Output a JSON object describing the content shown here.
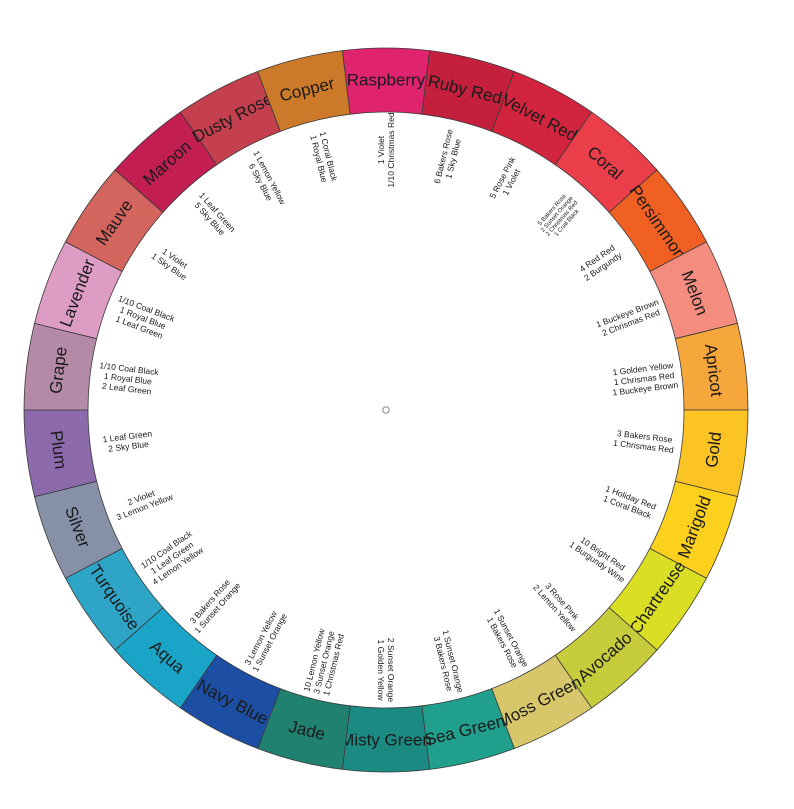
{
  "wheel": {
    "segments": [
      {
        "name": "Raspberry",
        "color": "#e0236f",
        "recipe": [
          "1 Violet",
          "1/10 Christmas Red"
        ]
      },
      {
        "name": "Ruby Red",
        "color": "#c41f3d",
        "recipe": [
          "6 Bakers Rose",
          "1 Sky Blue"
        ]
      },
      {
        "name": "Velvet Red",
        "color": "#d2243e",
        "recipe": [
          "5 Rose Pink",
          "1 Violet"
        ]
      },
      {
        "name": "Coral",
        "color": "#ea3f4a",
        "recipe": [
          "5 Bakers Rose",
          "2 Sunset Orange",
          "2 Christmas Red",
          "1 Coal Black"
        ]
      },
      {
        "name": "Persimmon",
        "color": "#f16023",
        "recipe": [
          "4 Red Red",
          "2 Burgundy"
        ]
      },
      {
        "name": "Melon",
        "color": "#f48c80",
        "recipe": [
          "1 Buckeye Brown",
          "2 Chrismas Red"
        ]
      },
      {
        "name": "Apricot",
        "color": "#f6a73b",
        "recipe": [
          "1 Golden Yellow",
          "1 Chrismas Red",
          "1 Buckeye Brown"
        ]
      },
      {
        "name": "Gold",
        "color": "#fcc324",
        "recipe": [
          "3 Bakers Rose",
          "1 Chrismas Red"
        ]
      },
      {
        "name": "Marigold",
        "color": "#fcd11e",
        "recipe": [
          "1 Holiday Red",
          "1 Coral Black"
        ]
      },
      {
        "name": "Chartreuse",
        "color": "#dade24",
        "recipe": [
          "10 Bright Red",
          "1 Burgundy Wine"
        ]
      },
      {
        "name": "Avocado",
        "color": "#c6cc3c",
        "recipe": [
          "3 Rose Pink",
          "2 Lemon Yellow"
        ]
      },
      {
        "name": "Moss Green",
        "color": "#d8c66b",
        "recipe": [
          "1 Sunset Orange",
          "1 Bakers Rose"
        ]
      },
      {
        "name": "Sea Green",
        "color": "#20a08c",
        "recipe": [
          "1 Sunset Orange",
          "3 Bakers Rose"
        ]
      },
      {
        "name": "Misty Green",
        "color": "#1b8a82",
        "recipe": [
          "2 Sunset Orange",
          "1 Golden Yellow"
        ]
      },
      {
        "name": "Jade",
        "color": "#218170",
        "recipe": [
          "10 Lemon Yellow",
          "3 Sunset Orange",
          "1 Christmas Red"
        ]
      },
      {
        "name": "Navy Blue",
        "color": "#1c4fa4",
        "recipe": [
          "3 Lemon Yellow",
          "1 Sunset Orange"
        ]
      },
      {
        "name": "Aqua",
        "color": "#1aa5c8",
        "recipe": [
          "3 Bakers Rose",
          "1 Sunset Orange"
        ]
      },
      {
        "name": "Turquoise",
        "color": "#2ea4c6",
        "recipe": [
          "1/10 Coal Black",
          "1 Leaf Green",
          "4 Lemon Yellow"
        ]
      },
      {
        "name": "Silver",
        "color": "#8691a8",
        "recipe": [
          "2 Violet",
          "3 Lemon Yellow"
        ]
      },
      {
        "name": "Plum",
        "color": "#8d6aac",
        "recipe": [
          "1 Leaf Green",
          "2 Sky Blue"
        ]
      },
      {
        "name": "Grape",
        "color": "#b48aa8",
        "recipe": [
          "1/10 Coal Black",
          "1 Royal Blue",
          "2 Leaf Green"
        ]
      },
      {
        "name": "Lavender",
        "color": "#dd9cc4",
        "recipe": [
          "1/10 Coal Black",
          "1 Royal Blue",
          "1 Leaf Green"
        ]
      },
      {
        "name": "Mauve",
        "color": "#d4645e",
        "recipe": [
          "1 Violet",
          "1 Sky Blue"
        ]
      },
      {
        "name": "Maroon",
        "color": "#c21e52",
        "recipe": [
          "1 Leaf Green",
          "5 Sky Blue"
        ]
      },
      {
        "name": "Dusty Rose",
        "color": "#c4404e",
        "recipe": [
          "1 Lemon Yellow",
          "6 Sky Blue"
        ]
      },
      {
        "name": "Copper",
        "color": "#cc7a2a",
        "recipe": [
          "1 Coral Black",
          "1 Royal Blue"
        ]
      }
    ]
  }
}
